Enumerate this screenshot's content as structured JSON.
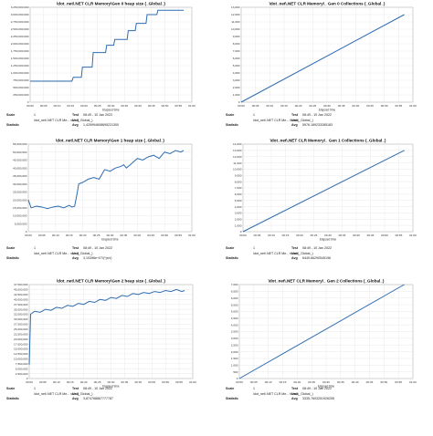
{
  "chart_data": [
    {
      "type": "line",
      "title": "\\dot_net\\.NET CLR Memory\\Gen 0 heap size (_Global_)",
      "xlabel": "Elapsed time",
      "x_ticks": [
        "00:00",
        "00:05",
        "00:10",
        "00:15",
        "00:20",
        "00:25",
        "00:30",
        "00:35",
        "00:40",
        "00:45",
        "00:50",
        "00:55",
        "01:00"
      ],
      "y_ticks": [
        "0",
        "250,000,000",
        "500,000,000",
        "750,000,000",
        "1,000,000,000",
        "1,250,000,000",
        "1,500,000,000",
        "1,750,000,000",
        "2,000,000,000",
        "2,250,000,000",
        "2,500,000,000",
        "2,750,000,000",
        "3,000,000,000",
        "3,250,000,000"
      ],
      "ylim": [
        0,
        3250000000
      ],
      "xlim": [
        0,
        60
      ],
      "grid": true,
      "series": [
        {
          "values": [
            [
              0,
              720000000
            ],
            [
              15.5,
              720000000
            ],
            [
              16,
              850000000
            ],
            [
              19,
              850000000
            ],
            [
              19.4,
              1200000000
            ],
            [
              23,
              1200000000
            ],
            [
              23.4,
              1700000000
            ],
            [
              28,
              1700000000
            ],
            [
              28.4,
              1950000000
            ],
            [
              31,
              1950000000
            ],
            [
              31.4,
              2150000000
            ],
            [
              36,
              2150000000
            ],
            [
              36.4,
              2450000000
            ],
            [
              39,
              2450000000
            ],
            [
              39.4,
              2700000000
            ],
            [
              43,
              2700000000
            ],
            [
              43.4,
              3000000000
            ],
            [
              47,
              3000000000
            ],
            [
              47.4,
              3150000000
            ],
            [
              57,
              3150000000
            ]
          ]
        }
      ],
      "info": {
        "scale_label": "Scale",
        "scale": "1",
        "test_label": "Test",
        "test": "08:49 - 10 Jan 2022",
        "counter": "\\dot_net\\.NET CLR Me... size (_Global_)",
        "unit_label": "Unit",
        "unit": "",
        "stat_label": "Statistic",
        "avg_label": "Avg",
        "avg": "1,425994608695221300"
      }
    },
    {
      "type": "line",
      "title": "\\dot_net\\.NET CLR Memory\\_ Gen 0 Collections (_Global_)",
      "xlabel": "Elapsed time",
      "x_ticks": [
        "00:00",
        "00:05",
        "00:10",
        "00:15",
        "00:20",
        "00:25",
        "00:30",
        "00:35",
        "00:40",
        "00:45",
        "00:50",
        "00:55",
        "01:00"
      ],
      "y_ticks": [
        "0",
        "1,000",
        "2,000",
        "3,000",
        "4,000",
        "5,000",
        "6,000",
        "7,000",
        "8,000",
        "9,000",
        "10,000",
        "11,000",
        "12,000",
        "13,000"
      ],
      "ylim": [
        0,
        13000
      ],
      "xlim": [
        0,
        60
      ],
      "grid": true,
      "series": [
        {
          "values": [
            [
              0,
              0
            ],
            [
              57,
              12000
            ]
          ]
        }
      ],
      "info": {
        "scale_label": "Scale",
        "scale": "1",
        "test_label": "Test",
        "test": "08:49 - 10 Jan 2022",
        "counter": "\\dot_net\\.NET CLR Me... tions (_Global_)",
        "unit_label": "Unit",
        "unit": "",
        "stat_label": "Statistic",
        "avg_label": "Avg",
        "avg": "5976.189233285183"
      }
    },
    {
      "type": "line",
      "title": "\\dot_net\\.NET CLR Memory\\Gen 1 heap size (_Global_)",
      "xlabel": "Elapsed time",
      "x_ticks": [
        "00:00",
        "00:05",
        "00:10",
        "00:15",
        "00:20",
        "00:25",
        "00:30",
        "00:35",
        "00:40",
        "00:45",
        "00:50",
        "00:55",
        "01:00"
      ],
      "y_ticks": [
        "0",
        "5,000,000",
        "10,000,000",
        "15,000,000",
        "20,000,000",
        "25,000,000",
        "30,000,000",
        "35,000,000",
        "40,000,000",
        "45,000,000",
        "50,000,000",
        "55,000,000"
      ],
      "ylim": [
        0,
        55000000
      ],
      "xlim": [
        0,
        60
      ],
      "grid": true,
      "series": [
        {
          "values": [
            [
              0,
              20000000
            ],
            [
              1,
              15000000
            ],
            [
              3,
              16000000
            ],
            [
              5,
              15500000
            ],
            [
              7,
              14500000
            ],
            [
              9,
              15500000
            ],
            [
              11,
              16000000
            ],
            [
              13,
              15000000
            ],
            [
              15,
              16500000
            ],
            [
              16,
              15500000
            ],
            [
              17,
              16000000
            ],
            [
              18,
              25000000
            ],
            [
              18.5,
              30000000
            ],
            [
              20,
              31000000
            ],
            [
              22,
              33000000
            ],
            [
              24,
              34000000
            ],
            [
              26,
              33000000
            ],
            [
              27,
              36000000
            ],
            [
              28,
              39000000
            ],
            [
              30,
              38000000
            ],
            [
              32,
              40000000
            ],
            [
              34,
              41000000
            ],
            [
              35,
              42000000
            ],
            [
              36,
              40000000
            ],
            [
              38,
              43000000
            ],
            [
              40,
              46000000
            ],
            [
              42,
              45000000
            ],
            [
              44,
              47000000
            ],
            [
              46,
              48000000
            ],
            [
              48,
              46000000
            ],
            [
              50,
              50000000
            ],
            [
              52,
              49000000
            ],
            [
              54,
              51000000
            ],
            [
              56,
              50000000
            ],
            [
              57,
              51000000
            ]
          ]
        }
      ],
      "info": {
        "scale_label": "Scale",
        "scale": "1",
        "test_label": "Test",
        "test": "08:49 - 10 Jan 2022",
        "counter": "\\dot_net\\.NET CLR Me... size (_Global_)",
        "unit_label": "Unit",
        "unit": "",
        "stat_label": "Statistic",
        "avg_label": "Avg",
        "avg": "3,10396e+07/(*|x/x)"
      }
    },
    {
      "type": "line",
      "title": "\\dot_net\\.NET CLR Memory\\_ Gen 1 Collections (_Global_)",
      "xlabel": "Elapsed time",
      "x_ticks": [
        "00:00",
        "00:05",
        "00:10",
        "00:15",
        "00:20",
        "00:25",
        "00:30",
        "00:35",
        "00:40",
        "00:45",
        "00:50",
        "00:55",
        "01:00"
      ],
      "y_ticks": [
        "0",
        "1,000",
        "2,000",
        "3,000",
        "4,000",
        "5,000",
        "6,000",
        "7,000",
        "8,000",
        "9,000",
        "10,000",
        "11,000",
        "12,000",
        "13,000",
        "14,000"
      ],
      "ylim": [
        0,
        14000
      ],
      "xlim": [
        0,
        60
      ],
      "grid": true,
      "series": [
        {
          "values": [
            [
              0,
              0
            ],
            [
              57,
              13000
            ]
          ]
        }
      ],
      "info": {
        "scale_label": "Scale",
        "scale": "1",
        "test_label": "Test",
        "test": "08:49 - 10 Jan 2022",
        "counter": "\\dot_net\\.NET CLR Me... tions (_Global_)",
        "unit_label": "Unit",
        "unit": "",
        "stat_label": "Statistic",
        "avg_label": "Avg",
        "avg": "6449.66290545196"
      }
    },
    {
      "type": "line",
      "title": "\\dot_net\\.NET CLR Memory\\Gen 2 heap size (_Global_)",
      "xlabel": "Elapsed time",
      "x_ticks": [
        "00:00",
        "00:05",
        "00:10",
        "00:15",
        "00:20",
        "00:25",
        "00:30",
        "00:35",
        "00:40",
        "00:45",
        "00:50",
        "00:55",
        "01:00"
      ],
      "y_ticks": [
        "0",
        "2,500,000",
        "5,000,000",
        "7,500,000",
        "10,000,000",
        "12,500,000",
        "15,000,000",
        "17,500,000",
        "20,000,000",
        "22,500,000",
        "25,000,000",
        "27,500,000",
        "30,000,000",
        "32,500,000",
        "35,000,000",
        "37,500,000",
        "40,000,000",
        "42,500,000",
        "45,000,000",
        "47,500,000"
      ],
      "ylim": [
        0,
        47500000
      ],
      "xlim": [
        0,
        60
      ],
      "grid": true,
      "series": [
        {
          "values": [
            [
              0,
              7000000
            ],
            [
              0.5,
              32500000
            ],
            [
              2,
              34000000
            ],
            [
              4,
              33500000
            ],
            [
              6,
              35000000
            ],
            [
              8,
              34500000
            ],
            [
              10,
              36000000
            ],
            [
              12,
              35500000
            ],
            [
              14,
              37000000
            ],
            [
              16,
              36500000
            ],
            [
              18,
              38000000
            ],
            [
              20,
              37500000
            ],
            [
              22,
              39000000
            ],
            [
              24,
              38500000
            ],
            [
              26,
              40000000
            ],
            [
              28,
              39500000
            ],
            [
              30,
              41000000
            ],
            [
              32,
              40500000
            ],
            [
              34,
              42000000
            ],
            [
              36,
              41500000
            ],
            [
              38,
              43000000
            ],
            [
              40,
              42500000
            ],
            [
              42,
              43500000
            ],
            [
              44,
              43000000
            ],
            [
              46,
              44000000
            ],
            [
              48,
              43500000
            ],
            [
              50,
              44500000
            ],
            [
              52,
              44000000
            ],
            [
              54,
              45000000
            ],
            [
              56,
              44000000
            ],
            [
              57,
              44500000
            ]
          ]
        }
      ],
      "info": {
        "scale_label": "Scale",
        "scale": "1",
        "test_label": "Test",
        "test": "08:49 - 10 Jan 2022",
        "counter": "\\dot_net\\.NET CLR Me... size (_Global_)",
        "unit_label": "Unit",
        "unit": "",
        "stat_label": "Statistic",
        "avg_label": "Avg",
        "avg": "3,874768867777787"
      }
    },
    {
      "type": "line",
      "title": "\\dot_net\\.NET CLR Memory\\_ Gen 2 Collections (_Global_)",
      "xlabel": "Elapsed time",
      "x_ticks": [
        "00:00",
        "00:05",
        "00:10",
        "00:15",
        "00:20",
        "00:25",
        "00:30",
        "00:35",
        "00:40",
        "00:45",
        "00:50",
        "00:55",
        "01:00"
      ],
      "y_ticks": [
        "0",
        "500",
        "1,000",
        "1,500",
        "2,000",
        "2,500",
        "3,000",
        "3,500",
        "4,000",
        "4,500",
        "5,000",
        "5,500",
        "6,000",
        "6,500",
        "7,000"
      ],
      "ylim": [
        0,
        7000
      ],
      "xlim": [
        0,
        60
      ],
      "grid": true,
      "series": [
        {
          "values": [
            [
              0,
              0
            ],
            [
              57,
              7000
            ]
          ]
        }
      ],
      "info": {
        "scale_label": "Scale",
        "scale": "1",
        "test_label": "Test",
        "test": "08:49 - 10 Jan 2022",
        "counter": "\\dot_net\\.NET CLR Me... tions (_Global_)",
        "unit_label": "Unit",
        "unit": "",
        "stat_label": "Statistic",
        "avg_label": "Avg",
        "avg": "3335.7603251926255"
      }
    }
  ]
}
